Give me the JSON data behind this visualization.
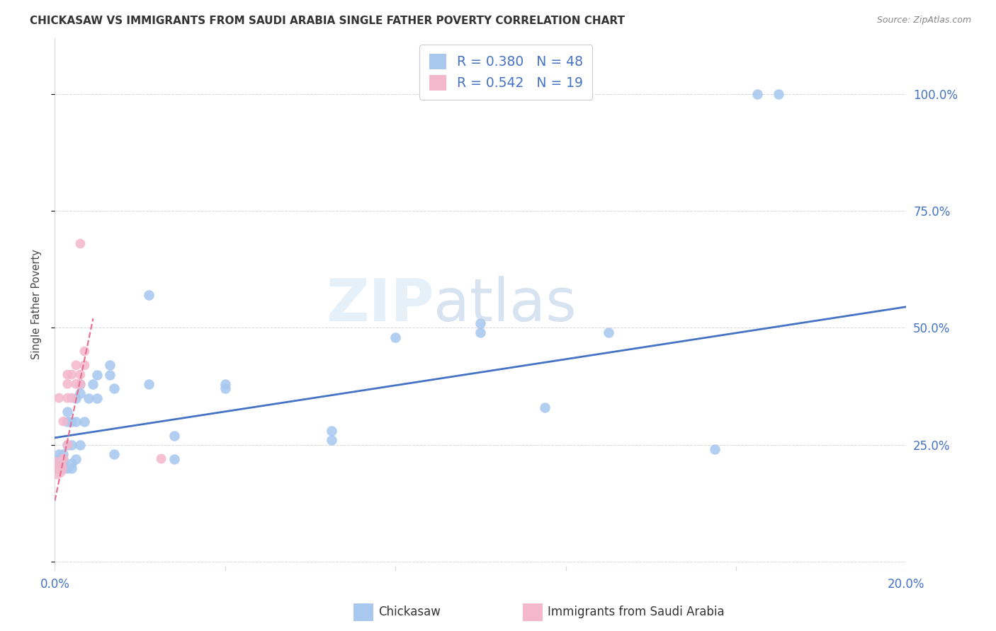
{
  "title": "CHICKASAW VS IMMIGRANTS FROM SAUDI ARABIA SINGLE FATHER POVERTY CORRELATION CHART",
  "source": "Source: ZipAtlas.com",
  "ylabel": "Single Father Poverty",
  "legend_label1": "Chickasaw",
  "legend_label2": "Immigrants from Saudi Arabia",
  "R1": 0.38,
  "N1": 48,
  "R2": 0.542,
  "N2": 19,
  "xlim": [
    0.0,
    0.2
  ],
  "ylim": [
    -0.02,
    1.12
  ],
  "yticks": [
    0.0,
    0.25,
    0.5,
    0.75,
    1.0
  ],
  "ytick_labels_right": [
    "",
    "25.0%",
    "50.0%",
    "75.0%",
    "100.0%"
  ],
  "xtick_positions": [
    0.0,
    0.04,
    0.08,
    0.12,
    0.16,
    0.2
  ],
  "xtick_labels": [
    "0.0%",
    "",
    "",
    "",
    "",
    "20.0%"
  ],
  "color1": "#a8c8f0",
  "color2": "#f4b8cc",
  "line_color1": "#4472c4",
  "line_color2": "#e87090",
  "axis_label_color": "#4472c4",
  "title_color": "#333333",
  "grid_color": "#d8d8d8",
  "chickasaw_x": [
    0.0005,
    0.001,
    0.001,
    0.001,
    0.001,
    0.002,
    0.002,
    0.002,
    0.002,
    0.003,
    0.003,
    0.003,
    0.003,
    0.004,
    0.004,
    0.004,
    0.004,
    0.005,
    0.005,
    0.005,
    0.006,
    0.006,
    0.006,
    0.007,
    0.008,
    0.009,
    0.01,
    0.01,
    0.013,
    0.013,
    0.014,
    0.014,
    0.022,
    0.022,
    0.028,
    0.028,
    0.04,
    0.04,
    0.065,
    0.065,
    0.08,
    0.1,
    0.1,
    0.115,
    0.13,
    0.155,
    0.165,
    0.17
  ],
  "chickasaw_y": [
    0.2,
    0.2,
    0.21,
    0.22,
    0.23,
    0.2,
    0.21,
    0.22,
    0.23,
    0.2,
    0.25,
    0.3,
    0.32,
    0.2,
    0.21,
    0.25,
    0.3,
    0.22,
    0.3,
    0.35,
    0.25,
    0.36,
    0.38,
    0.3,
    0.35,
    0.38,
    0.35,
    0.4,
    0.4,
    0.42,
    0.23,
    0.37,
    0.57,
    0.38,
    0.27,
    0.22,
    0.37,
    0.38,
    0.28,
    0.26,
    0.48,
    0.49,
    0.51,
    0.33,
    0.49,
    0.24,
    1.0,
    1.0
  ],
  "saudi_x": [
    0.0003,
    0.001,
    0.001,
    0.002,
    0.002,
    0.003,
    0.003,
    0.003,
    0.003,
    0.004,
    0.004,
    0.005,
    0.005,
    0.006,
    0.006,
    0.006,
    0.007,
    0.007,
    0.025
  ],
  "saudi_y": [
    0.2,
    0.2,
    0.35,
    0.22,
    0.3,
    0.35,
    0.38,
    0.4,
    0.25,
    0.35,
    0.4,
    0.38,
    0.42,
    0.38,
    0.4,
    0.68,
    0.42,
    0.45,
    0.22
  ],
  "saudi_size_base": 100,
  "saudi_size_large_idx": 0,
  "saudi_size_large": 500,
  "blue_line_x": [
    0.0,
    0.2
  ],
  "blue_line_y": [
    0.265,
    0.545
  ],
  "pink_line_x": [
    0.0,
    0.009
  ],
  "pink_line_y": [
    0.13,
    0.52
  ],
  "watermark_zip_color": "#d0e4f5",
  "watermark_atlas_color": "#b8cce8",
  "watermark_alpha": 0.55
}
